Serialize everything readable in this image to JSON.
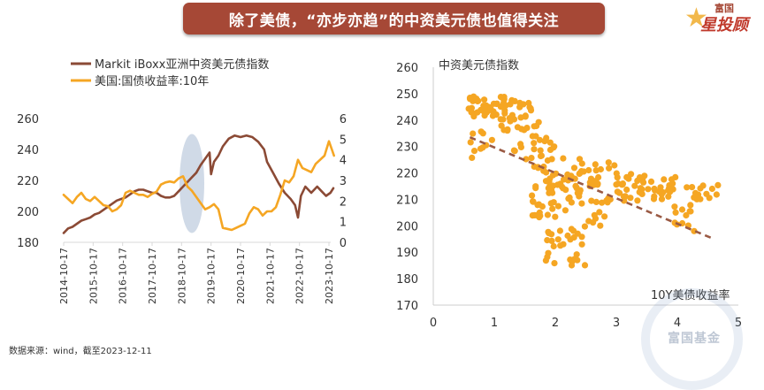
{
  "header": {
    "title": "除了美债，“亦步亦趋”的中资美元债也值得关注",
    "banner_color": "#a64836"
  },
  "logo": {
    "top_text": "富国",
    "main_text": "星投顾",
    "icon": "star-icon"
  },
  "source_note": "数据来源：wind，截至2023-12-11",
  "watermark": {
    "text": "富国基金"
  },
  "colors": {
    "brown": "#8b4a35",
    "orange": "#f5a623",
    "highlight": "#c8d4e3",
    "axis": "#d9d9d9"
  },
  "chart_data": [
    {
      "type": "line",
      "title": "",
      "xlabel": "",
      "ylabel": "",
      "ylabel_right": "",
      "x_tick_labels": [
        "2014-10-17",
        "2015-10-17",
        "2016-10-17",
        "2017-10-17",
        "2018-10-17",
        "2019-10-17",
        "2020-10-17",
        "2021-10-17",
        "2022-10-17",
        "2023-10-17"
      ],
      "ylim": [
        180,
        260
      ],
      "y_ticks": [
        180,
        200,
        220,
        240,
        260
      ],
      "ylim_right": [
        0,
        6
      ],
      "y_ticks_right": [
        0,
        1,
        2,
        3,
        4,
        5,
        6
      ],
      "legend_position": "top-left",
      "highlight": {
        "shape": "ellipse",
        "x_center": 2019.15,
        "y_center_left": 218,
        "x_half_width": 0.42,
        "y_half_height_left": 32
      },
      "series": [
        {
          "name": "Markit iBoxx亚洲中资美元债指数",
          "axis": "left",
          "color": "#8b4a35",
          "x": [
            2014.8,
            2014.95,
            2015.1,
            2015.25,
            2015.4,
            2015.55,
            2015.7,
            2015.85,
            2016.0,
            2016.15,
            2016.3,
            2016.45,
            2016.6,
            2016.75,
            2016.9,
            2017.05,
            2017.2,
            2017.35,
            2017.5,
            2017.65,
            2017.8,
            2017.95,
            2018.1,
            2018.25,
            2018.4,
            2018.55,
            2018.7,
            2018.85,
            2019.0,
            2019.15,
            2019.3,
            2019.45,
            2019.6,
            2019.75,
            2019.8,
            2019.9,
            2020.05,
            2020.2,
            2020.4,
            2020.6,
            2020.8,
            2021.0,
            2021.2,
            2021.4,
            2021.6,
            2021.7,
            2021.9,
            2022.1,
            2022.3,
            2022.5,
            2022.65,
            2022.75,
            2022.85,
            2023.0,
            2023.2,
            2023.4,
            2023.55,
            2023.7,
            2023.85,
            2023.95
          ],
          "values": [
            186,
            189,
            190,
            192,
            194,
            195,
            196,
            198,
            199,
            201,
            203,
            205,
            207,
            208,
            209,
            211,
            213,
            214,
            214,
            213,
            212,
            212,
            210,
            209,
            209,
            210,
            213,
            216,
            219,
            222,
            225,
            230,
            234,
            238,
            224,
            232,
            236,
            242,
            247,
            249,
            248,
            249,
            248,
            245,
            240,
            232,
            225,
            218,
            212,
            208,
            204,
            196,
            210,
            216,
            212,
            216,
            213,
            210,
            212,
            215
          ]
        },
        {
          "name": "美国:国债收益率:10年",
          "axis": "right",
          "color": "#f5a623",
          "x": [
            2014.8,
            2014.95,
            2015.1,
            2015.25,
            2015.4,
            2015.55,
            2015.7,
            2015.85,
            2016.0,
            2016.15,
            2016.3,
            2016.45,
            2016.6,
            2016.75,
            2016.9,
            2017.05,
            2017.2,
            2017.35,
            2017.5,
            2017.65,
            2017.8,
            2017.95,
            2018.1,
            2018.25,
            2018.4,
            2018.55,
            2018.7,
            2018.85,
            2019.0,
            2019.15,
            2019.3,
            2019.45,
            2019.6,
            2019.75,
            2019.9,
            2020.05,
            2020.2,
            2020.35,
            2020.5,
            2020.65,
            2020.8,
            2020.95,
            2021.1,
            2021.25,
            2021.4,
            2021.55,
            2021.7,
            2021.85,
            2022.0,
            2022.15,
            2022.3,
            2022.45,
            2022.6,
            2022.75,
            2022.9,
            2023.05,
            2023.2,
            2023.35,
            2023.5,
            2023.65,
            2023.8,
            2023.9,
            2023.97
          ],
          "values": [
            2.3,
            2.1,
            1.9,
            2.2,
            2.4,
            2.1,
            2.0,
            2.2,
            2.0,
            1.8,
            1.75,
            1.5,
            1.6,
            1.8,
            2.4,
            2.5,
            2.4,
            2.3,
            2.3,
            2.2,
            2.35,
            2.45,
            2.8,
            2.9,
            2.95,
            2.9,
            3.1,
            3.2,
            2.7,
            2.5,
            2.2,
            1.9,
            1.6,
            1.7,
            1.85,
            1.6,
            0.7,
            0.65,
            0.6,
            0.7,
            0.8,
            0.9,
            1.4,
            1.7,
            1.6,
            1.3,
            1.5,
            1.5,
            1.7,
            2.3,
            3.0,
            2.9,
            3.2,
            4.0,
            3.6,
            3.5,
            3.4,
            3.8,
            4.0,
            4.2,
            4.9,
            4.5,
            4.2
          ]
        }
      ]
    },
    {
      "type": "scatter",
      "title": "",
      "xlabel": "10Y美债收益率",
      "ylabel": "中资美元债指数",
      "xlim": [
        0,
        5
      ],
      "x_ticks": [
        0,
        1,
        2,
        3,
        4,
        5
      ],
      "ylim": [
        170,
        260
      ],
      "y_ticks": [
        170,
        180,
        190,
        200,
        210,
        220,
        230,
        240,
        250,
        260
      ],
      "grid": false,
      "marker_color": "#f5a623",
      "trendline": {
        "color": "#9a5a44",
        "style": "dashed",
        "x": [
          0.6,
          4.6
        ],
        "y": [
          233.5,
          195.0
        ]
      },
      "clusters": [
        {
          "x": [
            0.55,
            1.2
          ],
          "y": [
            241,
            249
          ],
          "n": 40
        },
        {
          "x": [
            1.1,
            1.8
          ],
          "y": [
            236,
            248
          ],
          "n": 35
        },
        {
          "x": [
            0.6,
            1.0
          ],
          "y": [
            225,
            236
          ],
          "n": 10
        },
        {
          "x": [
            1.3,
            2.0
          ],
          "y": [
            225,
            234
          ],
          "n": 20
        },
        {
          "x": [
            1.6,
            2.5
          ],
          "y": [
            212,
            226
          ],
          "n": 35
        },
        {
          "x": [
            1.9,
            2.5
          ],
          "y": [
            205,
            215
          ],
          "n": 15
        },
        {
          "x": [
            2.2,
            3.0
          ],
          "y": [
            215,
            224
          ],
          "n": 25
        },
        {
          "x": [
            2.8,
            3.5
          ],
          "y": [
            208,
            214
          ],
          "n": 15
        },
        {
          "x": [
            3.0,
            4.0
          ],
          "y": [
            212,
            220
          ],
          "n": 30
        },
        {
          "x": [
            3.6,
            4.7
          ],
          "y": [
            210,
            216
          ],
          "n": 25
        },
        {
          "x": [
            3.8,
            4.3
          ],
          "y": [
            198,
            208
          ],
          "n": 12
        },
        {
          "x": [
            1.6,
            2.0
          ],
          "y": [
            202,
            214
          ],
          "n": 15
        },
        {
          "x": [
            1.8,
            2.5
          ],
          "y": [
            185,
            200
          ],
          "n": 30
        },
        {
          "x": [
            2.5,
            2.9
          ],
          "y": [
            200,
            210
          ],
          "n": 10
        }
      ]
    }
  ]
}
